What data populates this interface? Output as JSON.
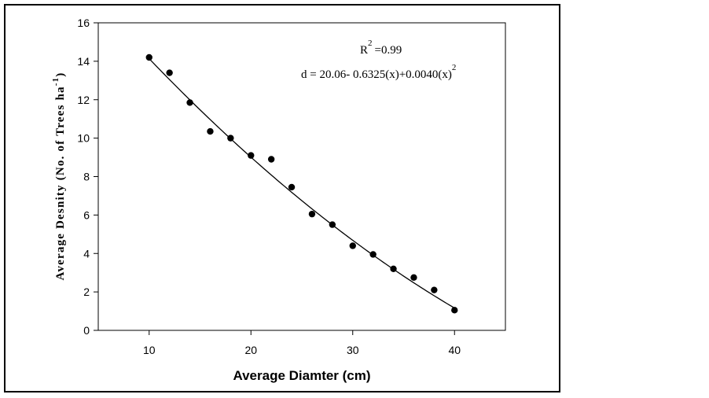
{
  "chart_data": {
    "type": "scatter",
    "xlabel": "Average Diamter (cm)",
    "ylabel": {
      "prefix": "Average Desnity (No. of Trees ha",
      "superscript": "-1",
      "suffix": ")"
    },
    "xlim": [
      5,
      45
    ],
    "ylim": [
      0,
      16
    ],
    "x_ticks": [
      10,
      20,
      30,
      40
    ],
    "y_ticks": [
      0,
      2,
      4,
      6,
      8,
      10,
      12,
      14,
      16
    ],
    "grid": false,
    "legend": "none",
    "annotations": {
      "r_squared": {
        "base": "R",
        "exponent": "2",
        "value": "=0.99"
      },
      "equation": {
        "text": "d = 20.06- 0.6325(x)+0.0040(x)",
        "exponent": "2"
      }
    },
    "series": [
      {
        "kind": "points",
        "x": [
          10,
          12,
          14,
          16,
          18,
          20,
          22,
          24,
          26,
          28,
          30,
          32,
          34,
          36,
          38,
          40
        ],
        "y": [
          14.2,
          13.4,
          11.85,
          10.35,
          10.0,
          9.1,
          8.9,
          7.45,
          6.05,
          5.5,
          4.4,
          3.95,
          3.2,
          2.75,
          2.1,
          1.05
        ]
      },
      {
        "kind": "fit",
        "coefficients": [
          20.06,
          -0.6325,
          0.004
        ],
        "x_range": [
          10,
          40
        ]
      }
    ],
    "colors": {
      "marker": "#000000",
      "line": "#000000",
      "frame": "#000000"
    }
  }
}
